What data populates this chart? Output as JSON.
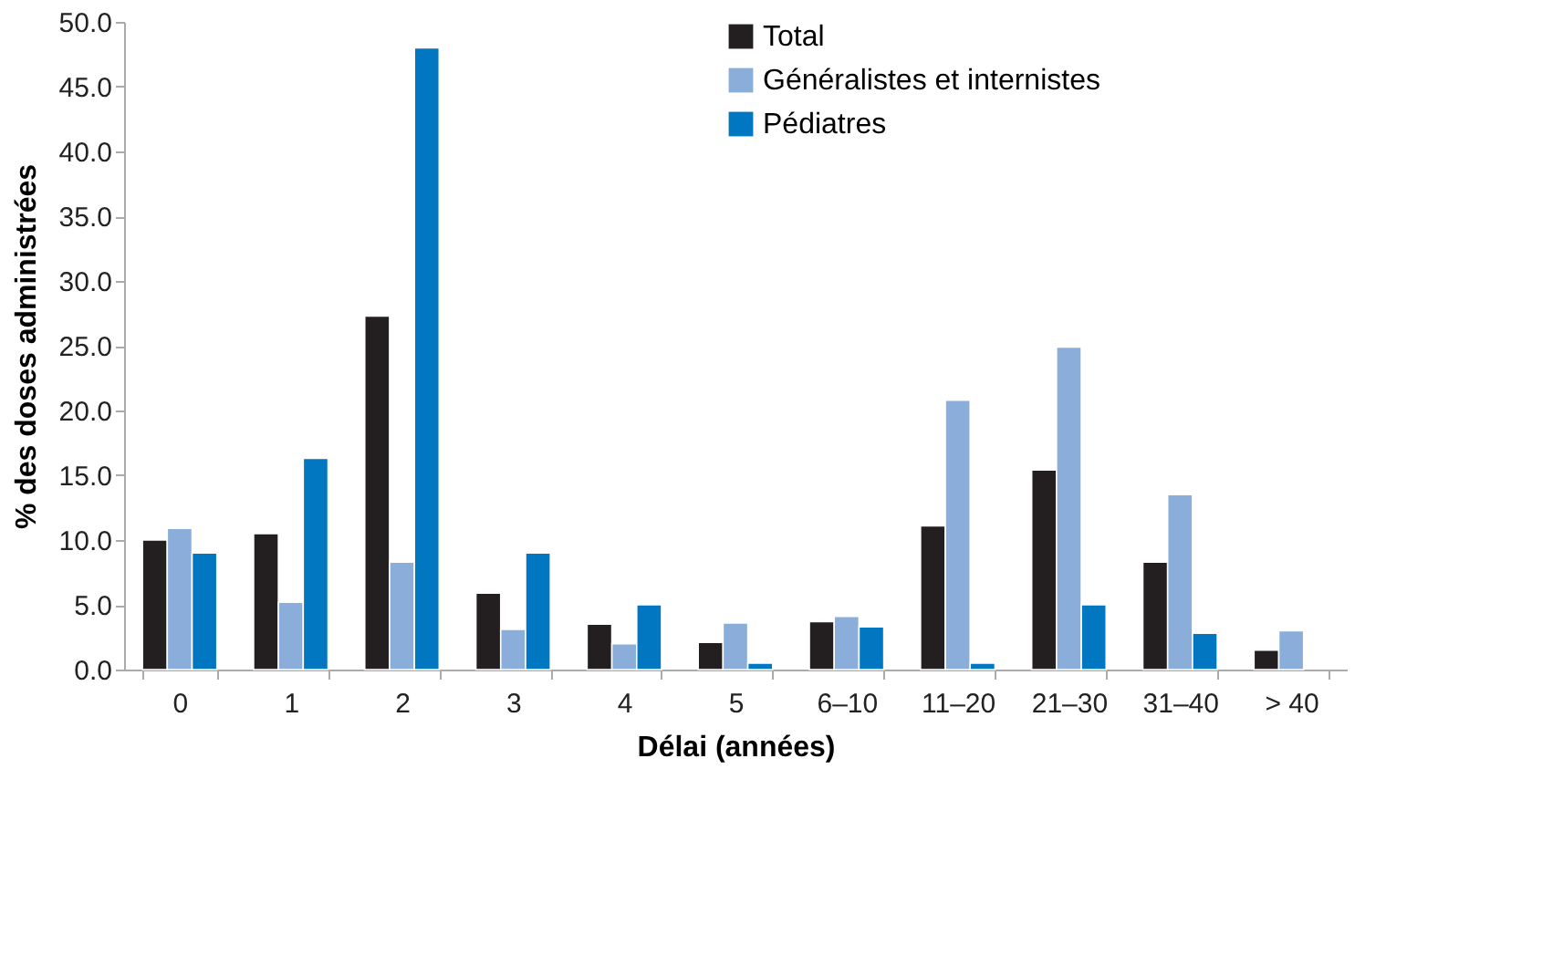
{
  "chart_data": {
    "type": "bar",
    "xlabel": "Délai (années)",
    "ylabel": "% des doses administrées",
    "categories": [
      "0",
      "1",
      "2",
      "3",
      "4",
      "5",
      "6–10",
      "11–20",
      "21–30",
      "31–40",
      "> 40"
    ],
    "series": [
      {
        "name": "Total",
        "color": "#231f20",
        "values": [
          10.0,
          10.5,
          27.3,
          5.9,
          3.5,
          2.1,
          3.7,
          11.1,
          15.4,
          8.3,
          1.5
        ]
      },
      {
        "name": "Généralistes et internistes",
        "color": "#8aadd9",
        "values": [
          10.9,
          5.2,
          8.3,
          3.1,
          2.0,
          3.6,
          4.1,
          20.8,
          24.9,
          13.5,
          3.0
        ]
      },
      {
        "name": "Pédiatres",
        "color": "#0077c0",
        "values": [
          9.0,
          16.3,
          48.0,
          9.0,
          5.0,
          0.5,
          3.3,
          0.5,
          5.0,
          2.8,
          null
        ]
      }
    ],
    "ylim": [
      0,
      50
    ],
    "yticks": [
      {
        "value": 0,
        "label": "0.0"
      },
      {
        "value": 5,
        "label": "5.0"
      },
      {
        "value": 10,
        "label": "10.0"
      },
      {
        "value": 15,
        "label": "15.0"
      },
      {
        "value": 20,
        "label": "20.0"
      },
      {
        "value": 25,
        "label": "25.0"
      },
      {
        "value": 30,
        "label": "30.0"
      },
      {
        "value": 35,
        "label": "35.0"
      },
      {
        "value": 40,
        "label": "40.0"
      },
      {
        "value": 45,
        "label": "45.0"
      },
      {
        "value": 50,
        "label": "50.0"
      }
    ],
    "grid": false,
    "legend": "top right"
  }
}
